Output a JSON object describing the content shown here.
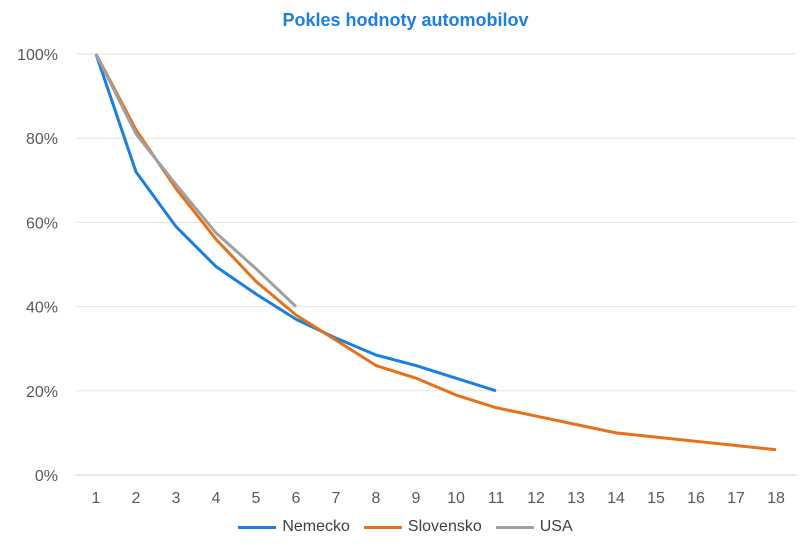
{
  "chart_data": {
    "type": "line",
    "title": "Pokles hodnoty automobilov",
    "xlabel": "",
    "ylabel": "",
    "categories": [
      "1",
      "2",
      "3",
      "4",
      "5",
      "6",
      "7",
      "8",
      "9",
      "10",
      "11",
      "12",
      "13",
      "14",
      "15",
      "16",
      "17",
      "18"
    ],
    "ylim": [
      0,
      100
    ],
    "yticks": [
      "0%",
      "20%",
      "40%",
      "60%",
      "80%",
      "100%"
    ],
    "grid": true,
    "legend_position": "bottom",
    "series": [
      {
        "name": "Nemecko",
        "color": "#1a7fe0",
        "values": [
          100,
          72,
          59,
          49.5,
          43,
          37,
          32.5,
          28.5,
          26,
          23,
          20,
          null,
          null,
          null,
          null,
          null,
          null,
          null
        ]
      },
      {
        "name": "Slovensko",
        "color": "#e8701a",
        "values": [
          100,
          82,
          68,
          56,
          46,
          38,
          32,
          26,
          23,
          19,
          16,
          14,
          12,
          10,
          9,
          8,
          7,
          6
        ]
      },
      {
        "name": "USA",
        "color": "#a0a0a0",
        "values": [
          100,
          81,
          69,
          57.5,
          49,
          40,
          null,
          null,
          null,
          null,
          null,
          null,
          null,
          null,
          null,
          null,
          null,
          null
        ]
      }
    ]
  }
}
